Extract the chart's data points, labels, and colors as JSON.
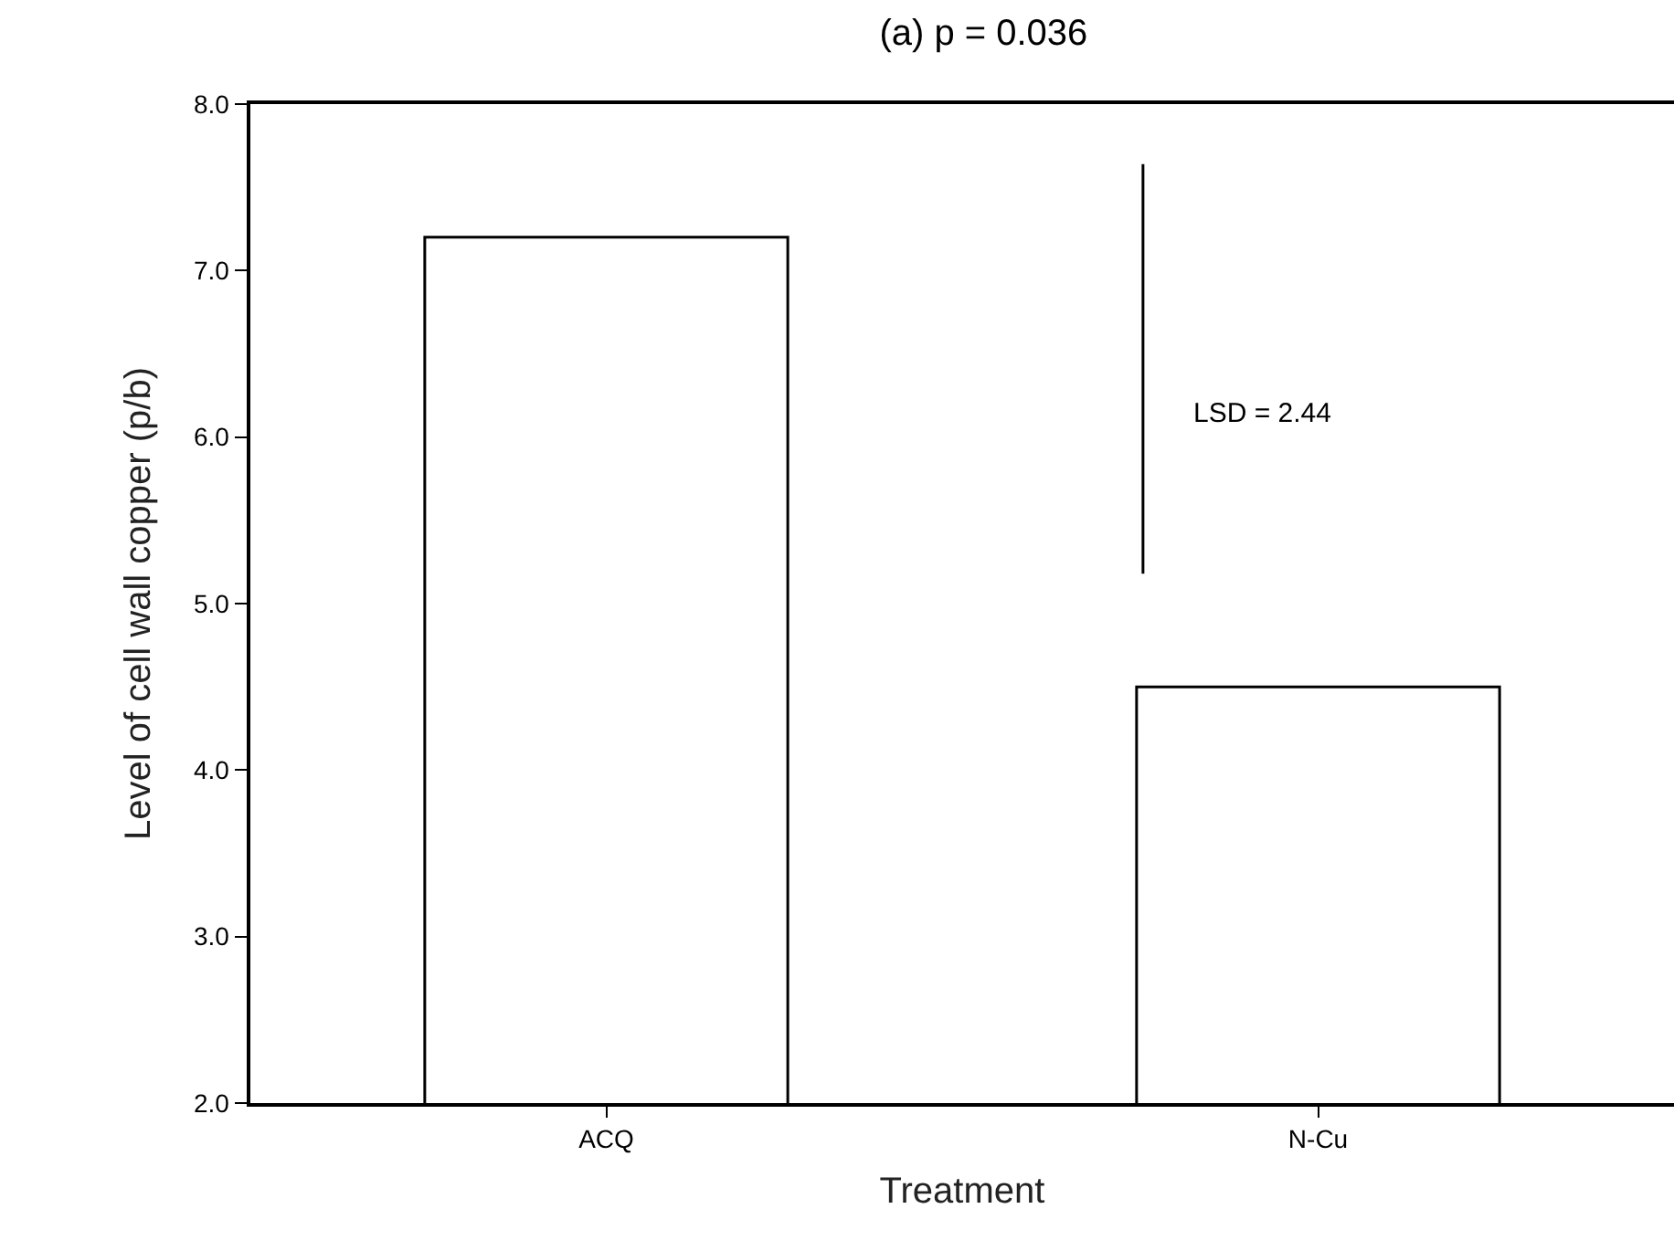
{
  "chart_data": {
    "type": "bar",
    "title": "(a) p = 0.036",
    "xlabel": "Treatment",
    "ylabel": "Level of cell wall copper (p/b)",
    "categories": [
      "ACQ",
      "N-Cu"
    ],
    "series": [
      {
        "color": "#ffffff",
        "values": [
          7.2,
          4.5
        ]
      }
    ],
    "ylim": [
      2.0,
      8.0
    ],
    "yticks": [
      {
        "value": 2,
        "label": "2.0"
      },
      {
        "value": 3,
        "label": "3.0"
      },
      {
        "value": 4,
        "label": "4.0"
      },
      {
        "value": 5,
        "label": "5.0"
      },
      {
        "value": 6,
        "label": "6.0"
      },
      {
        "value": 7,
        "label": "7.0"
      },
      {
        "value": 8,
        "label": "8.0"
      }
    ],
    "annotations": [
      "LSD = 2.44"
    ],
    "grid": false
  }
}
